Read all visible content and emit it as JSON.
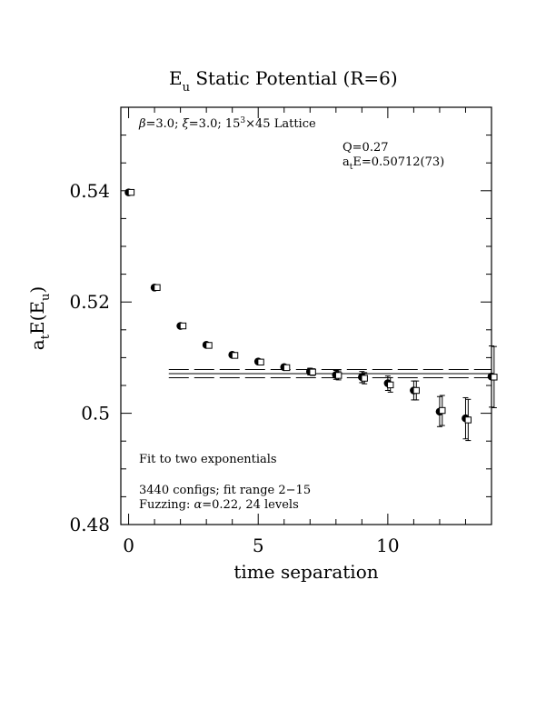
{
  "chart_data": {
    "type": "scatter",
    "title": {
      "main": "E",
      "sub": "u",
      "rest": " Static Potential (R=6)"
    },
    "xlabel": "time separation",
    "ylabel": {
      "a": "a",
      "t": "t",
      "e": "E(E",
      "u": "u",
      "close": ")"
    },
    "xlim": [
      -0.3,
      14.0
    ],
    "ylim": [
      0.48,
      0.555
    ],
    "x_ticks": [
      0,
      5,
      10
    ],
    "x_tick_labels": [
      "0",
      "5",
      "10"
    ],
    "y_ticks": [
      0.48,
      0.5,
      0.52,
      0.54
    ],
    "y_tick_labels": [
      "0.48",
      "0.5",
      "0.52",
      "0.54"
    ],
    "annotations": {
      "lattice": {
        "beta": "β",
        "text1": "=3.0; ",
        "xi": "ξ",
        "text2": "=3.0; 15",
        "sup": "3",
        "text3": "×45 Lattice"
      },
      "q": "Q=0.27",
      "fit_energy": {
        "a": "a",
        "t": "t",
        "rest": "E=0.50712(73)"
      },
      "fit_type": "Fit to two exponentials",
      "configs": "3440 configs; fit range 2−15",
      "fuzzing": {
        "pre": "Fuzzing: ",
        "alpha": "α",
        "post": "=0.22, 24 levels"
      }
    },
    "series": [
      {
        "marker": "filled-circle",
        "x": [
          0,
          1,
          2,
          3,
          4,
          5,
          6,
          7,
          8,
          9,
          10,
          11,
          12,
          13,
          14
        ],
        "y": [
          0.5397,
          0.5226,
          0.5157,
          0.5123,
          0.5105,
          0.5093,
          0.5083,
          0.5075,
          0.5069,
          0.5065,
          0.5054,
          0.5041,
          0.5003,
          0.4991,
          0.5066
        ],
        "err": [
          0.0003,
          0.0003,
          0.0003,
          0.0003,
          0.0003,
          0.0004,
          0.0004,
          0.0006,
          0.0008,
          0.001,
          0.0013,
          0.0017,
          0.0027,
          0.0037,
          0.0055
        ]
      },
      {
        "marker": "open-square",
        "x": [
          0.1,
          1.1,
          2.1,
          3.1,
          4.1,
          5.1,
          6.1,
          7.1,
          8.1,
          9.1,
          10.1,
          11.1,
          12.1,
          13.1,
          14.1
        ],
        "y": [
          0.5397,
          0.5226,
          0.5157,
          0.5122,
          0.5104,
          0.5092,
          0.5082,
          0.5074,
          0.5068,
          0.5063,
          0.5051,
          0.5041,
          0.5005,
          0.4988,
          0.5065
        ],
        "err": [
          0.0003,
          0.0003,
          0.0003,
          0.0003,
          0.0003,
          0.0004,
          0.0004,
          0.0006,
          0.0008,
          0.001,
          0.0013,
          0.0017,
          0.0027,
          0.0037,
          0.0055
        ]
      }
    ],
    "fit": {
      "x_range": [
        2,
        15
      ],
      "center": 0.50712,
      "upper": 0.50785,
      "lower": 0.50639
    }
  }
}
